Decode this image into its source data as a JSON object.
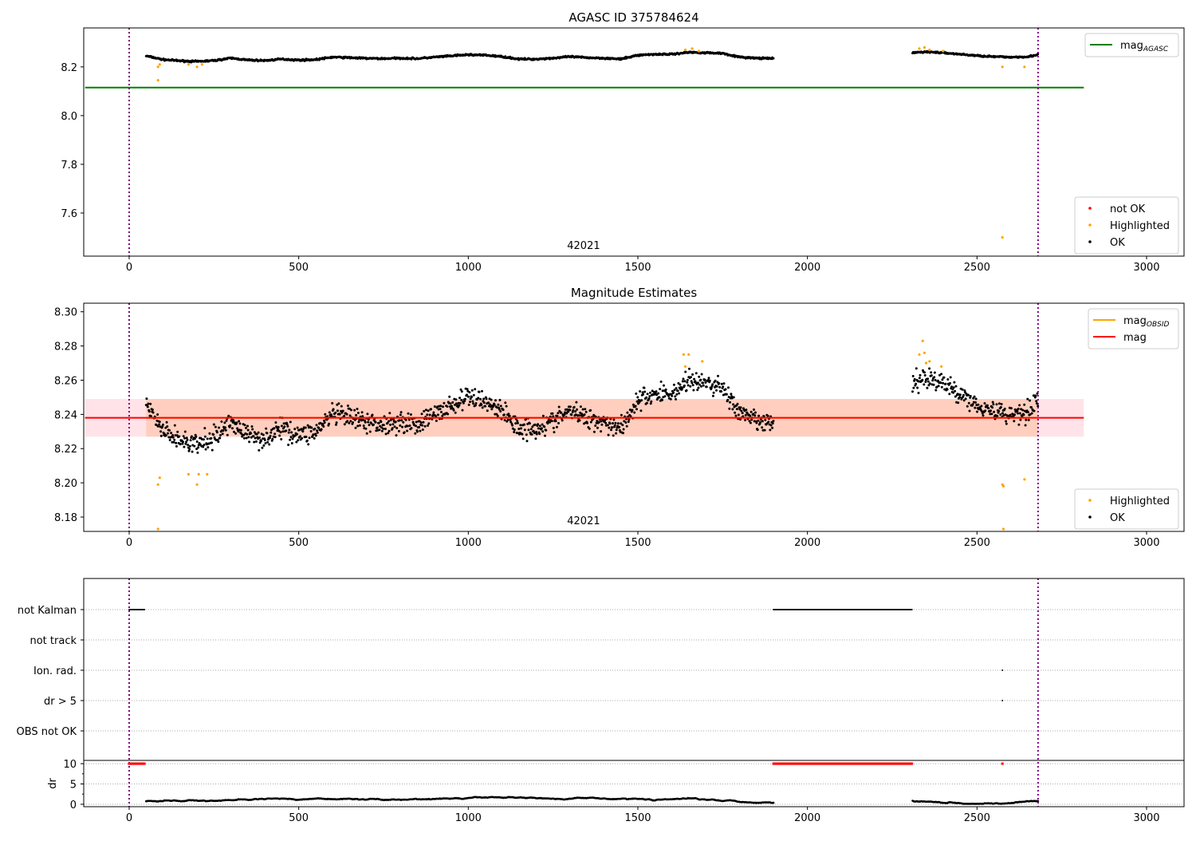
{
  "chart_data": [
    {
      "type": "scatter",
      "title": "AGASC ID 375784624",
      "xlim": [
        -130,
        3100
      ],
      "ylim": [
        7.423,
        8.36
      ],
      "yticks": [
        7.6,
        7.8,
        8.0,
        8.2
      ],
      "xticks": [
        0,
        500,
        1000,
        1500,
        2000,
        2500,
        3000
      ],
      "obsid_label": "42021",
      "obsid_x": 1340,
      "mag_agasc": 8.115,
      "line_range": [
        -130,
        2815
      ],
      "vlines": [
        0,
        2680
      ],
      "legend_lines": [
        {
          "label": "mag",
          "sub": "AGASC",
          "color": "#008000"
        }
      ],
      "legend_points": [
        {
          "label": "not OK",
          "color": "#ff0000"
        },
        {
          "label": "Highlighted",
          "color": "#ffa500"
        },
        {
          "label": "OK",
          "color": "#000000"
        }
      ],
      "segments": [
        {
          "start": 50,
          "end": 1900
        },
        {
          "start": 2310,
          "end": 2680
        }
      ],
      "trend_x": [
        50,
        100,
        150,
        200,
        250,
        300,
        350,
        400,
        450,
        500,
        550,
        600,
        650,
        700,
        750,
        800,
        850,
        900,
        950,
        1000,
        1050,
        1100,
        1150,
        1200,
        1250,
        1300,
        1350,
        1400,
        1450,
        1500,
        1550,
        1600,
        1650,
        1700,
        1750,
        1800,
        1850,
        1900,
        2310,
        2350,
        2400,
        2450,
        2500,
        2550,
        2600,
        2650,
        2680
      ],
      "trend_y": [
        8.245,
        8.23,
        8.225,
        8.222,
        8.226,
        8.236,
        8.228,
        8.226,
        8.232,
        8.228,
        8.23,
        8.24,
        8.238,
        8.235,
        8.234,
        8.236,
        8.234,
        8.24,
        8.245,
        8.25,
        8.248,
        8.242,
        8.232,
        8.232,
        8.236,
        8.242,
        8.238,
        8.236,
        8.232,
        8.248,
        8.252,
        8.252,
        8.26,
        8.258,
        8.256,
        8.24,
        8.236,
        8.234,
        8.258,
        8.262,
        8.258,
        8.252,
        8.246,
        8.242,
        8.24,
        8.242,
        8.25
      ],
      "noise": 0.006,
      "highlighted": [
        [
          85,
          8.145
        ],
        [
          85,
          8.2
        ],
        [
          90,
          8.21
        ],
        [
          175,
          8.21
        ],
        [
          200,
          8.2
        ],
        [
          215,
          8.21
        ],
        [
          1640,
          8.27
        ],
        [
          1660,
          8.275
        ],
        [
          1680,
          8.265
        ],
        [
          2330,
          8.275
        ],
        [
          2345,
          8.28
        ],
        [
          2360,
          8.27
        ],
        [
          2400,
          8.265
        ],
        [
          2575,
          8.2
        ],
        [
          2575,
          7.5
        ],
        [
          2640,
          8.2
        ]
      ]
    },
    {
      "type": "scatter",
      "title": "Magnitude Estimates",
      "xlim": [
        -130,
        3100
      ],
      "ylim": [
        8.1716,
        8.305
      ],
      "yticks": [
        8.18,
        8.2,
        8.22,
        8.24,
        8.26,
        8.28,
        8.3
      ],
      "ytick_labels": [
        "8.18",
        "8.20",
        "8.22",
        "8.24",
        "8.26",
        "8.28",
        "8.30"
      ],
      "xticks": [
        0,
        500,
        1000,
        1500,
        2000,
        2500,
        3000
      ],
      "obsid_label": "42021",
      "obsid_x": 1340,
      "mag": 8.238,
      "mag_obsid": 8.238,
      "band": [
        8.227,
        8.249
      ],
      "band_obsid": [
        8.227,
        8.249
      ],
      "line_range": [
        -130,
        2815
      ],
      "vlines": [
        0,
        2680
      ],
      "legend_lines": [
        {
          "label": "mag",
          "sub": "OBSID",
          "color": "#ffa500"
        },
        {
          "label": "mag",
          "sub": "",
          "color": "#ff0000"
        }
      ],
      "legend_points": [
        {
          "label": "Highlighted",
          "color": "#ffa500"
        },
        {
          "label": "OK",
          "color": "#000000"
        }
      ],
      "noise": 0.009,
      "highlighted": [
        [
          85,
          8.173
        ],
        [
          85,
          8.199
        ],
        [
          90,
          8.203
        ],
        [
          175,
          8.205
        ],
        [
          200,
          8.199
        ],
        [
          205,
          8.205
        ],
        [
          230,
          8.205
        ],
        [
          1635,
          8.275
        ],
        [
          1650,
          8.275
        ],
        [
          1690,
          8.271
        ],
        [
          1640,
          8.268
        ],
        [
          2330,
          8.275
        ],
        [
          2340,
          8.283
        ],
        [
          2345,
          8.276
        ],
        [
          2350,
          8.27
        ],
        [
          2360,
          8.271
        ],
        [
          2395,
          8.268
        ],
        [
          2575,
          8.199
        ],
        [
          2578,
          8.198
        ],
        [
          2578,
          8.173
        ],
        [
          2640,
          8.202
        ]
      ]
    },
    {
      "type": "scatter",
      "xlim": [
        -130,
        3100
      ],
      "flag_rows": [
        "not Kalman",
        "not track",
        "Ion. rad.",
        "dr > 5",
        "OBS not OK"
      ],
      "flags": {
        "not Kalman": [
          [
            0,
            45
          ],
          [
            1900,
            2310
          ]
        ],
        "not track": [],
        "Ion. rad.": [
          [
            2575,
            2575
          ]
        ],
        "dr > 5": [
          [
            2575,
            2575
          ]
        ],
        "OBS not OK": []
      },
      "dr_ylabel": "dr",
      "dr_ylim": [
        -0.6,
        10.8
      ],
      "dr_yticks": [
        0,
        5,
        10
      ],
      "dr_clipped": [
        [
          0,
          45
        ],
        [
          1900,
          2310
        ],
        [
          2575,
          2575
        ]
      ],
      "dr_trend": 0.8,
      "xticks": [
        0,
        500,
        1000,
        1500,
        2000,
        2500,
        3000
      ],
      "vlines": [
        0,
        2680
      ]
    }
  ]
}
